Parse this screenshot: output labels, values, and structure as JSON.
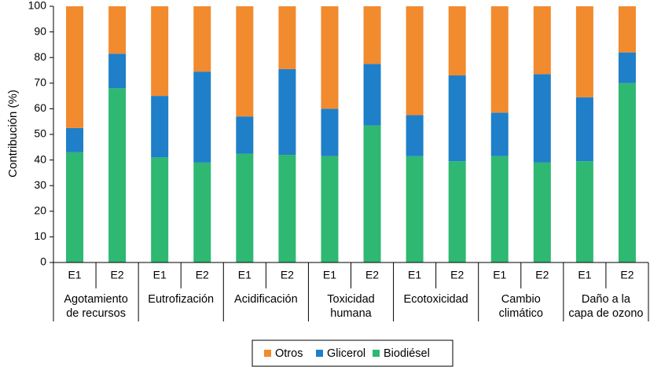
{
  "chart_data": {
    "type": "bar",
    "stacked": true,
    "ylabel": "Contribución (%)",
    "ylim": [
      0,
      100
    ],
    "yticks": [
      0,
      10,
      20,
      30,
      40,
      50,
      60,
      70,
      80,
      90,
      100
    ],
    "groups": [
      {
        "label": [
          "Agotamiento",
          "de recursos"
        ],
        "categories": [
          "E1",
          "E2"
        ]
      },
      {
        "label": [
          "Eutrofización"
        ],
        "categories": [
          "E1",
          "E2"
        ]
      },
      {
        "label": [
          "Acidificación"
        ],
        "categories": [
          "E1",
          "E2"
        ]
      },
      {
        "label": [
          "Toxicidad",
          "humana"
        ],
        "categories": [
          "E1",
          "E2"
        ]
      },
      {
        "label": [
          "Ecotoxicidad"
        ],
        "categories": [
          "E1",
          "E2"
        ]
      },
      {
        "label": [
          "Cambio",
          "climático"
        ],
        "categories": [
          "E1",
          "E2"
        ]
      },
      {
        "label": [
          "Daño a la",
          "capa de ozono"
        ],
        "categories": [
          "E1",
          "E2"
        ]
      }
    ],
    "series": [
      {
        "name": "Biodiésel",
        "color": "#2eb872",
        "values": [
          43,
          68,
          41,
          39,
          42.5,
          42,
          41.5,
          53.5,
          41.5,
          39.5,
          41.5,
          39,
          39.5,
          70
        ]
      },
      {
        "name": "Glicerol",
        "color": "#1f7fc8",
        "values": [
          9.5,
          13.5,
          24,
          35.5,
          14.5,
          33.5,
          18.5,
          24,
          16,
          33.5,
          17,
          34.5,
          25,
          12
        ]
      },
      {
        "name": "Otros",
        "color": "#f28a2e",
        "values": [
          47.5,
          18.5,
          35,
          25.5,
          43,
          24.5,
          40,
          22.5,
          42.5,
          27,
          41.5,
          26.5,
          35.5,
          18
        ]
      }
    ],
    "legend": {
      "position": "bottom",
      "order": [
        "Otros",
        "Glicerol",
        "Biodiésel"
      ]
    },
    "grid": false
  }
}
